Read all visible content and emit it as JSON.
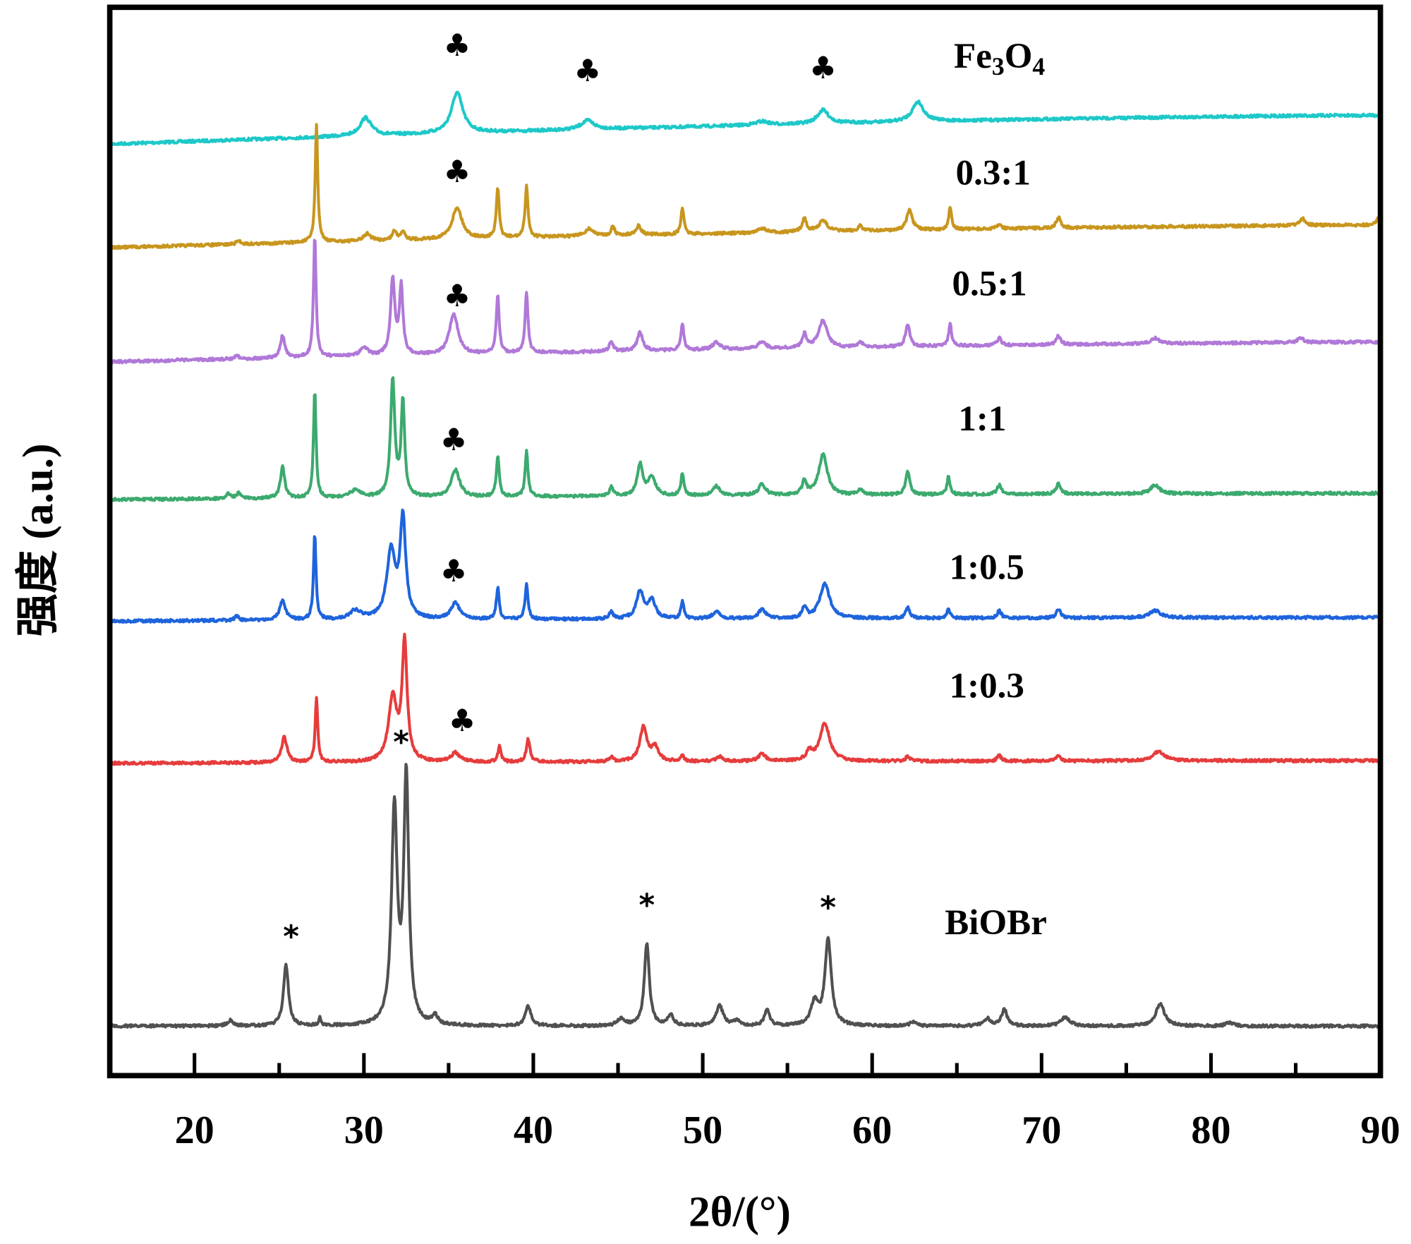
{
  "chart_data": {
    "type": "line",
    "title": "",
    "xlabel": "2θ/(°)",
    "ylabel": "强度 (a.u.)",
    "xlim": [
      15,
      90
    ],
    "xticks": [
      "20",
      "30",
      "40",
      "50",
      "60",
      "70",
      "80",
      "90"
    ],
    "yticks": [],
    "grid": false,
    "legend": "inline labels to the right of each trace",
    "peak_format": "[2θ (°), relative intensity (a.u.), FWHM (°)]",
    "series": [
      {
        "name": "Fe3O4",
        "label_main": "Fe",
        "label_sub1": "3",
        "label_mid": "O",
        "label_sub2": "4",
        "color": "#1ec8c8",
        "background_rise": 32,
        "peaks": [
          [
            30.1,
            20,
            0.8
          ],
          [
            35.5,
            45,
            0.8
          ],
          [
            43.2,
            10,
            0.9
          ],
          [
            53.5,
            4,
            0.9
          ],
          [
            57.1,
            15,
            0.8
          ],
          [
            62.7,
            22,
            0.8
          ]
        ],
        "markers": [
          "♣",
          "♣",
          "♣"
        ]
      },
      {
        "name": "0.3:1",
        "color": "#c8961e",
        "background_rise": 25,
        "peaks": [
          [
            22.6,
            4,
            0.3
          ],
          [
            27.2,
            130,
            0.18
          ],
          [
            30.2,
            8,
            0.5
          ],
          [
            31.8,
            10,
            0.3
          ],
          [
            32.3,
            10,
            0.3
          ],
          [
            35.5,
            35,
            0.7
          ],
          [
            37.9,
            55,
            0.2
          ],
          [
            39.6,
            58,
            0.2
          ],
          [
            43.3,
            8,
            0.6
          ],
          [
            44.7,
            10,
            0.25
          ],
          [
            46.2,
            10,
            0.4
          ],
          [
            48.8,
            30,
            0.2
          ],
          [
            53.5,
            5,
            0.5
          ],
          [
            56.0,
            15,
            0.3
          ],
          [
            57.1,
            12,
            0.6
          ],
          [
            59.3,
            6,
            0.3
          ],
          [
            62.2,
            22,
            0.4
          ],
          [
            64.6,
            25,
            0.2
          ],
          [
            67.5,
            5,
            0.3
          ],
          [
            71.0,
            12,
            0.3
          ],
          [
            85.4,
            8,
            0.4
          ],
          [
            89.9,
            8,
            0.3
          ]
        ],
        "markers": [
          "♣"
        ]
      },
      {
        "name": "0.5:1",
        "color": "#b078d8",
        "background_rise": 22,
        "peaks": [
          [
            22.5,
            4,
            0.3
          ],
          [
            25.2,
            25,
            0.3
          ],
          [
            27.1,
            135,
            0.18
          ],
          [
            30.0,
            10,
            0.5
          ],
          [
            31.7,
            85,
            0.3
          ],
          [
            32.2,
            75,
            0.25
          ],
          [
            35.3,
            45,
            0.6
          ],
          [
            37.9,
            65,
            0.2
          ],
          [
            39.6,
            68,
            0.2
          ],
          [
            44.6,
            12,
            0.25
          ],
          [
            46.3,
            20,
            0.4
          ],
          [
            48.8,
            30,
            0.2
          ],
          [
            50.8,
            8,
            0.5
          ],
          [
            53.5,
            8,
            0.5
          ],
          [
            56.0,
            15,
            0.3
          ],
          [
            57.1,
            30,
            0.6
          ],
          [
            59.3,
            6,
            0.3
          ],
          [
            62.1,
            25,
            0.3
          ],
          [
            64.6,
            25,
            0.2
          ],
          [
            67.5,
            8,
            0.3
          ],
          [
            71.0,
            10,
            0.3
          ],
          [
            76.7,
            6,
            0.6
          ],
          [
            85.3,
            5,
            0.4
          ]
        ],
        "markers": [
          "♣"
        ]
      },
      {
        "name": "1:1",
        "color": "#3caa6e",
        "background_rise": 7,
        "peaks": [
          [
            22.0,
            5,
            0.3
          ],
          [
            22.6,
            6,
            0.3
          ],
          [
            25.2,
            35,
            0.3
          ],
          [
            27.1,
            120,
            0.18
          ],
          [
            29.5,
            8,
            0.8
          ],
          [
            31.7,
            130,
            0.3
          ],
          [
            32.3,
            105,
            0.25
          ],
          [
            35.4,
            30,
            0.6
          ],
          [
            37.9,
            45,
            0.2
          ],
          [
            39.6,
            50,
            0.2
          ],
          [
            44.6,
            10,
            0.25
          ],
          [
            46.3,
            35,
            0.4
          ],
          [
            47.0,
            20,
            0.5
          ],
          [
            48.8,
            25,
            0.2
          ],
          [
            50.8,
            10,
            0.5
          ],
          [
            53.5,
            12,
            0.5
          ],
          [
            56.0,
            15,
            0.3
          ],
          [
            57.1,
            45,
            0.6
          ],
          [
            59.3,
            6,
            0.3
          ],
          [
            62.1,
            25,
            0.3
          ],
          [
            64.5,
            20,
            0.2
          ],
          [
            67.5,
            10,
            0.3
          ],
          [
            71.0,
            12,
            0.3
          ],
          [
            76.7,
            10,
            0.6
          ]
        ],
        "markers": [
          "♣"
        ]
      },
      {
        "name": "1:0.5",
        "color": "#1e64dc",
        "background_rise": 4,
        "peaks": [
          [
            22.5,
            5,
            0.3
          ],
          [
            25.2,
            22,
            0.4
          ],
          [
            27.1,
            95,
            0.18
          ],
          [
            29.5,
            10,
            0.8
          ],
          [
            31.6,
            75,
            0.6
          ],
          [
            32.3,
            110,
            0.4
          ],
          [
            35.4,
            18,
            0.6
          ],
          [
            37.9,
            35,
            0.2
          ],
          [
            39.6,
            40,
            0.2
          ],
          [
            44.6,
            8,
            0.25
          ],
          [
            46.3,
            30,
            0.5
          ],
          [
            47.0,
            20,
            0.5
          ],
          [
            48.8,
            20,
            0.2
          ],
          [
            50.8,
            8,
            0.5
          ],
          [
            53.5,
            10,
            0.5
          ],
          [
            56.0,
            12,
            0.3
          ],
          [
            57.2,
            38,
            0.7
          ],
          [
            62.1,
            12,
            0.3
          ],
          [
            64.5,
            12,
            0.2
          ],
          [
            67.5,
            8,
            0.3
          ],
          [
            71.0,
            10,
            0.3
          ],
          [
            76.7,
            8,
            0.8
          ]
        ],
        "markers": [
          "♣"
        ]
      },
      {
        "name": "1:0.3",
        "color": "#e63c3c",
        "background_rise": 3,
        "peaks": [
          [
            25.3,
            28,
            0.4
          ],
          [
            27.2,
            72,
            0.18
          ],
          [
            31.7,
            70,
            0.6
          ],
          [
            32.4,
            130,
            0.35
          ],
          [
            35.4,
            10,
            0.6
          ],
          [
            38.0,
            18,
            0.2
          ],
          [
            39.7,
            25,
            0.25
          ],
          [
            44.6,
            5,
            0.25
          ],
          [
            46.5,
            38,
            0.5
          ],
          [
            47.2,
            15,
            0.5
          ],
          [
            48.8,
            8,
            0.2
          ],
          [
            51.0,
            5,
            0.5
          ],
          [
            53.5,
            8,
            0.5
          ],
          [
            56.3,
            10,
            0.4
          ],
          [
            57.2,
            42,
            0.7
          ],
          [
            62.1,
            5,
            0.3
          ],
          [
            67.5,
            6,
            0.3
          ],
          [
            71.0,
            5,
            0.3
          ],
          [
            76.9,
            10,
            0.8
          ]
        ],
        "markers": [
          "♣"
        ]
      },
      {
        "name": "BiOBr",
        "color": "#505050",
        "background_rise": 0,
        "peaks": [
          [
            22.1,
            6,
            0.4
          ],
          [
            25.4,
            68,
            0.35
          ],
          [
            27.4,
            10,
            0.15
          ],
          [
            31.8,
            240,
            0.4
          ],
          [
            32.5,
            275,
            0.35
          ],
          [
            34.2,
            10,
            0.4
          ],
          [
            39.7,
            22,
            0.4
          ],
          [
            45.2,
            8,
            0.5
          ],
          [
            46.7,
            92,
            0.35
          ],
          [
            48.1,
            12,
            0.4
          ],
          [
            51.0,
            22,
            0.5
          ],
          [
            52.0,
            6,
            0.4
          ],
          [
            53.8,
            18,
            0.35
          ],
          [
            56.6,
            25,
            0.5
          ],
          [
            57.4,
            95,
            0.45
          ],
          [
            62.4,
            4,
            0.5
          ],
          [
            66.8,
            8,
            0.5
          ],
          [
            67.8,
            18,
            0.4
          ],
          [
            71.4,
            10,
            0.6
          ],
          [
            77.0,
            25,
            0.6
          ],
          [
            81.1,
            4,
            0.5
          ]
        ],
        "markers": [
          "*",
          "*",
          "*",
          "*"
        ]
      }
    ]
  }
}
